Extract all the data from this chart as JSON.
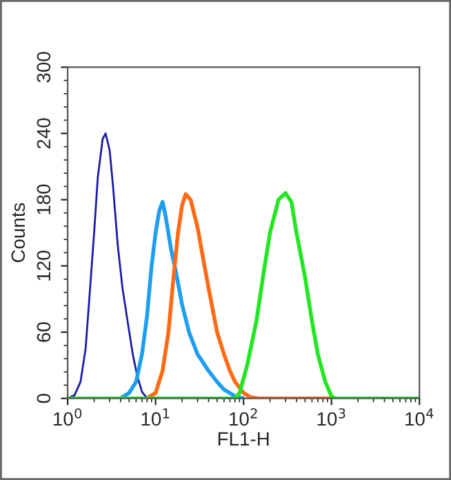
{
  "chart_data": {
    "type": "line",
    "xlabel": "FL1-H",
    "ylabel": "Counts",
    "log": "x",
    "xlim": [
      1,
      10000
    ],
    "xticks": [
      {
        "value": 1,
        "label": "10$^{0}$"
      },
      {
        "value": 10,
        "label": "10$^{1}$"
      },
      {
        "value": 100,
        "label": "10$^{2}$"
      },
      {
        "value": 1000,
        "label": "10$^{3}$"
      },
      {
        "value": 10000,
        "label": "10$^{4}$"
      }
    ],
    "ylim": [
      0,
      300
    ],
    "yticks": [
      0,
      60,
      120,
      180,
      240,
      300
    ],
    "grid": false,
    "marker": "none",
    "line_style": "solid",
    "series": [
      {
        "color": "#1a1aa8",
        "x": [
          1.0,
          1.2,
          1.4,
          1.6,
          1.8,
          2.0,
          2.2,
          2.5,
          2.7,
          3.0,
          3.3,
          3.7,
          4.2,
          4.8,
          5.5,
          6.2,
          7,
          8
        ],
        "values": [
          0,
          3,
          15,
          45,
          100,
          150,
          200,
          235,
          240,
          225,
          190,
          140,
          100,
          70,
          40,
          20,
          6,
          0
        ]
      },
      {
        "color": "#1e9ef0",
        "x": [
          4,
          5,
          6,
          7,
          8,
          9,
          10,
          11,
          12,
          13,
          15,
          17,
          20,
          24,
          30,
          40,
          50,
          60,
          80,
          100
        ],
        "values": [
          0,
          5,
          15,
          40,
          75,
          120,
          150,
          170,
          178,
          165,
          135,
          115,
          85,
          60,
          40,
          25,
          15,
          8,
          2,
          0
        ]
      },
      {
        "color": "#ff6a13",
        "x": [
          8,
          10,
          12,
          14,
          16,
          18,
          20,
          22,
          25,
          30,
          35,
          40,
          50,
          60,
          70,
          80,
          100,
          120,
          150,
          1000
        ],
        "values": [
          0,
          5,
          25,
          60,
          110,
          150,
          175,
          185,
          180,
          155,
          125,
          100,
          60,
          40,
          25,
          15,
          5,
          1,
          0,
          0
        ]
      },
      {
        "color": "#22e622",
        "x": [
          1,
          80,
          90,
          110,
          140,
          170,
          200,
          250,
          300,
          350,
          400,
          500,
          600,
          700,
          850,
          1000,
          1100,
          10000
        ],
        "values": [
          0,
          0,
          5,
          30,
          70,
          115,
          150,
          180,
          186,
          178,
          150,
          110,
          70,
          40,
          15,
          2,
          0,
          0
        ]
      }
    ]
  }
}
